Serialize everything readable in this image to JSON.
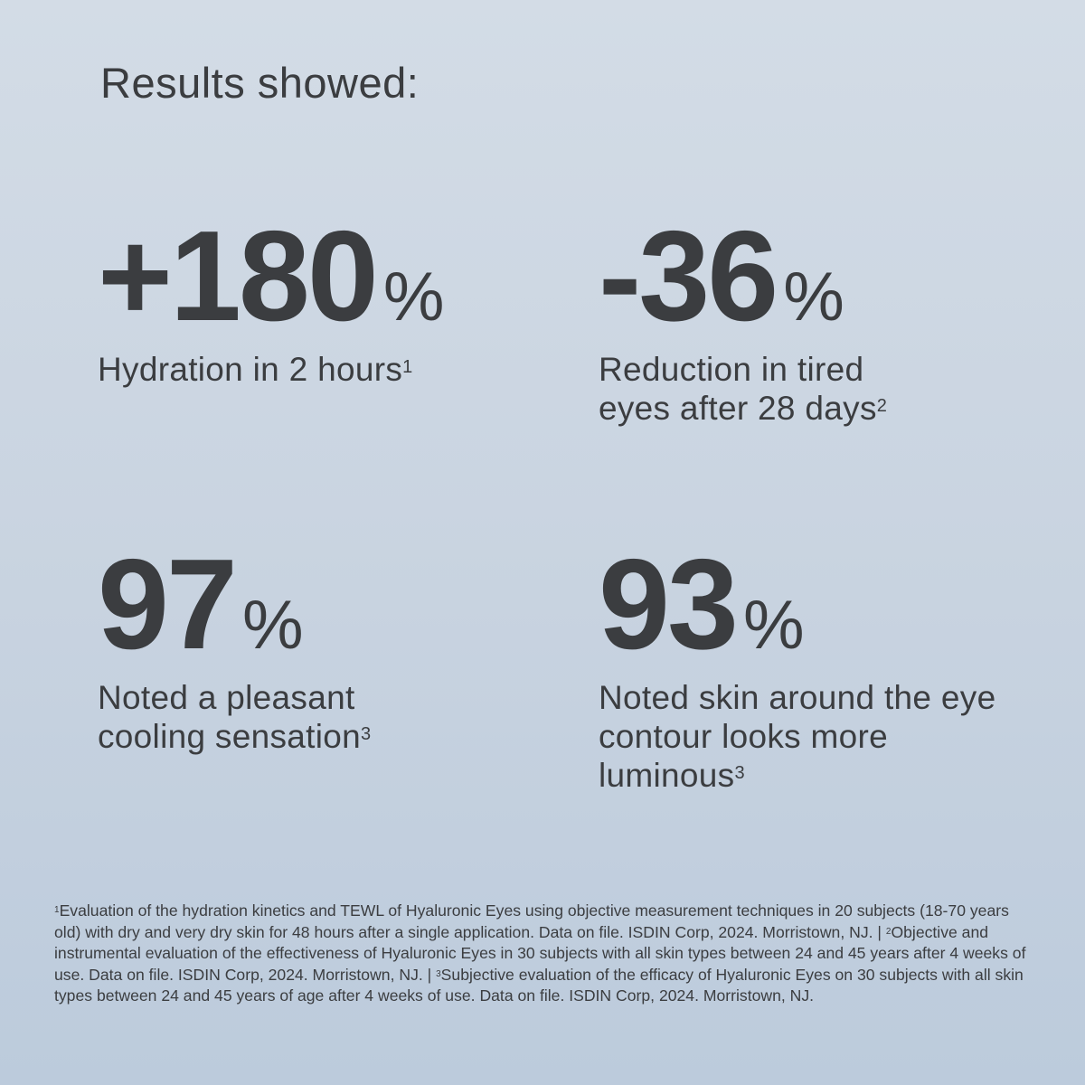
{
  "title": "Results showed:",
  "stats": [
    {
      "value": "+180",
      "unit": "%",
      "desc": "Hydration in 2 hours",
      "note": "1"
    },
    {
      "value": "-36",
      "unit": "%",
      "desc": "Reduction in tired eyes after 28 days",
      "note": "2"
    },
    {
      "value": "97",
      "unit": "%",
      "desc": "Noted a pleasant cooling sensation",
      "note": "3"
    },
    {
      "value": "93",
      "unit": "%",
      "desc": "Noted skin around the eye contour looks more luminous",
      "note": "3"
    }
  ],
  "footnotes": [
    {
      "mark": "1",
      "text": "Evaluation of the hydration kinetics and TEWL of Hyaluronic Eyes using objective measurement techniques in 20 subjects (18-70 years old) with dry and very dry skin for 48 hours after a single application. Data on file. ISDIN Corp, 2024. Morristown, NJ."
    },
    {
      "mark": "2",
      "text": "Objective and instrumental evaluation of the effectiveness of Hyaluronic Eyes in 30 subjects with all skin types between 24 and 45 years after 4 weeks of use. Data on file. ISDIN Corp, 2024. Morristown, NJ."
    },
    {
      "mark": "3",
      "text": "Subjective evaluation of the efficacy of Hyaluronic Eyes on 30 subjects with all skin types between 24 and 45 years of age after 4 weeks of use. Data on file. ISDIN Corp, 2024. Morristown, NJ."
    }
  ],
  "separator": " | ",
  "colors": {
    "text": "#3b3d40",
    "background_top": "#d3dce6",
    "background_bottom": "#bccbdc"
  }
}
